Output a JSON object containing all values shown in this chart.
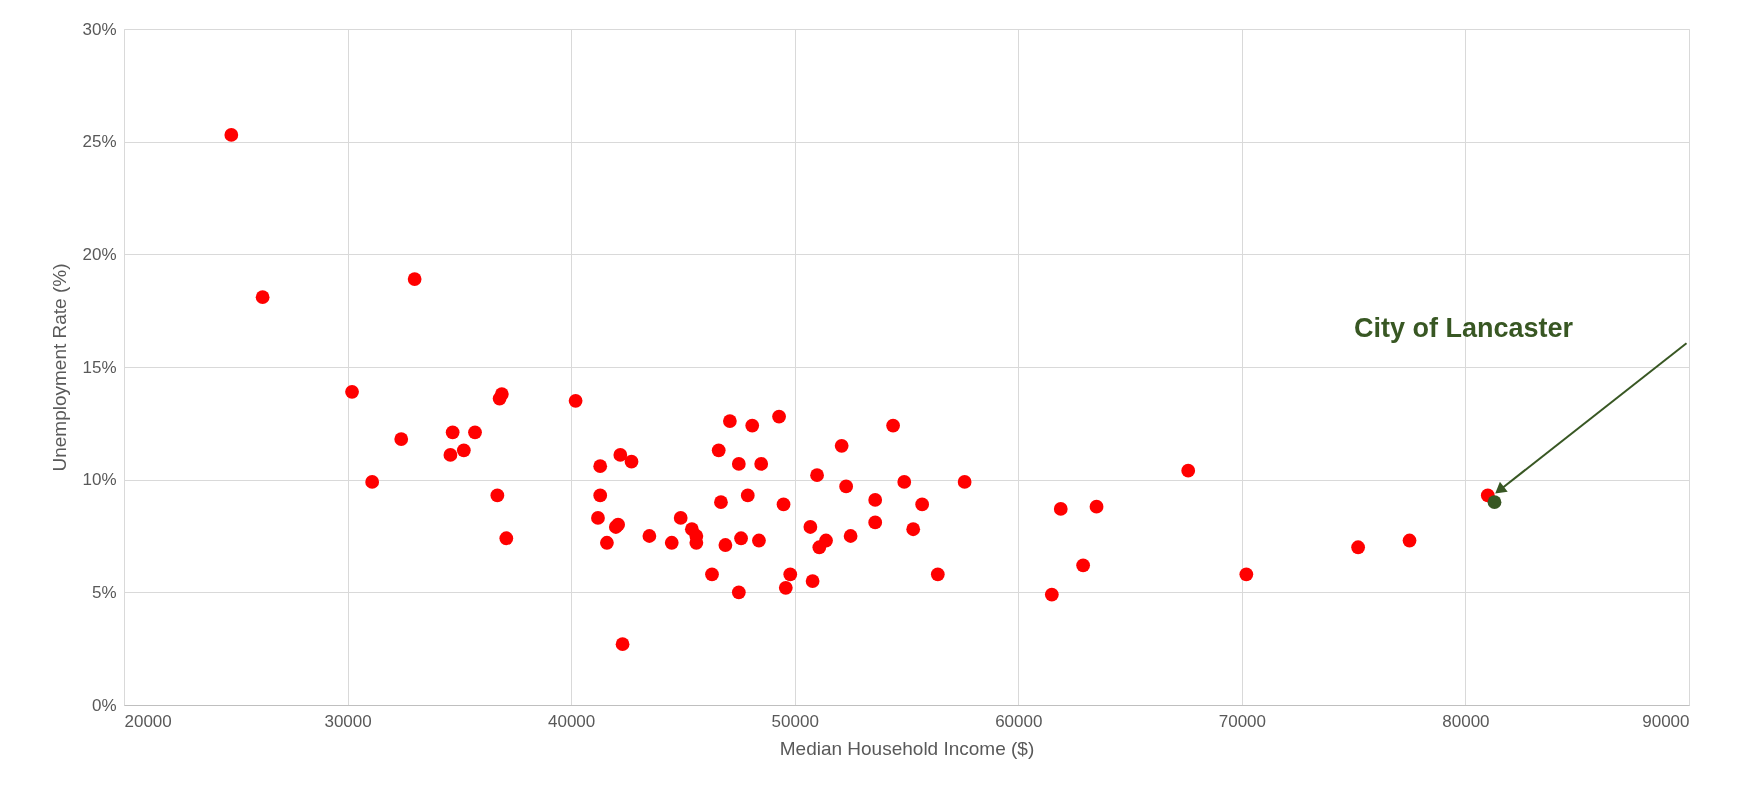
{
  "chart_data": {
    "type": "scatter",
    "xlabel": "Median Household Income ($)",
    "ylabel": "Unemployment Rate (%)",
    "xlim": [
      20000,
      90000
    ],
    "xticks": [
      20000,
      30000,
      40000,
      50000,
      60000,
      70000,
      80000,
      90000
    ],
    "ylim": [
      0,
      30
    ],
    "yticks": [
      {
        "value": 0,
        "label": "0%"
      },
      {
        "value": 5,
        "label": "5%"
      },
      {
        "value": 10,
        "label": "10%"
      },
      {
        "value": 15,
        "label": "15%"
      },
      {
        "value": 20,
        "label": "20%"
      },
      {
        "value": 25,
        "label": "25%"
      },
      {
        "value": 30,
        "label": "30%"
      }
    ],
    "grid": true,
    "marker": "circle",
    "series": [
      {
        "color": "#ff0000",
        "x": [
          24800,
          26200,
          33000,
          30200,
          31100,
          32400,
          34600,
          34700,
          35200,
          35700,
          36700,
          36800,
          36900,
          37100,
          40200,
          41200,
          41300,
          41300,
          41600,
          42000,
          42100,
          42200,
          42300,
          42700,
          43500,
          44500,
          44900,
          45400,
          45600,
          45600,
          46300,
          46600,
          46700,
          46900,
          47100,
          47500,
          47500,
          47600,
          47900,
          48100,
          48400,
          48500,
          49300,
          49500,
          49600,
          49800,
          50700,
          50800,
          51000,
          51100,
          51400,
          52100,
          52300,
          52500,
          53600,
          53600,
          54400,
          54900,
          55300,
          55700,
          56400,
          57600,
          61500,
          61900,
          62900,
          63500,
          67600,
          70200,
          75200,
          77500,
          81000
        ],
        "values": [
          25.3,
          18.1,
          18.9,
          13.9,
          9.9,
          11.8,
          11.1,
          12.1,
          11.3,
          12.1,
          9.3,
          13.6,
          13.8,
          7.4,
          13.5,
          8.3,
          10.6,
          9.3,
          7.2,
          7.9,
          8.0,
          11.1,
          2.7,
          10.8,
          7.5,
          7.2,
          8.3,
          7.8,
          7.5,
          7.2,
          5.8,
          11.3,
          9.0,
          7.1,
          12.6,
          10.7,
          5.0,
          7.4,
          9.3,
          12.4,
          7.3,
          10.7,
          12.8,
          8.9,
          5.2,
          5.8,
          7.9,
          5.5,
          10.2,
          7.0,
          7.3,
          11.5,
          9.7,
          7.5,
          9.1,
          8.1,
          12.4,
          9.9,
          7.8,
          8.9,
          5.8,
          9.9,
          4.9,
          8.7,
          6.2,
          8.8,
          10.4,
          5.8,
          7.0,
          7.3,
          9.3
        ]
      },
      {
        "color": "#385723",
        "x": [
          81300
        ],
        "values": [
          9.0
        ]
      }
    ],
    "annotations": [
      "City of Lancaster"
    ]
  }
}
